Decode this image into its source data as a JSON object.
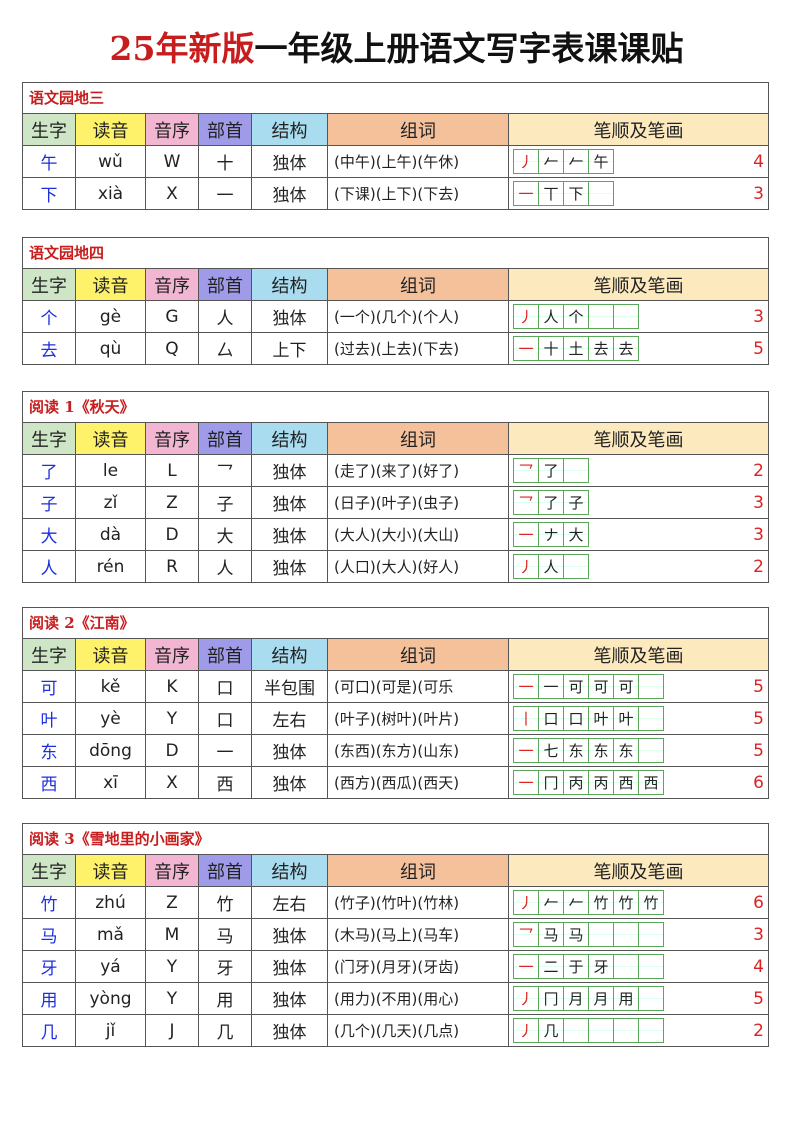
{
  "title": {
    "highlight": "25年新版",
    "rest": "一年级上册语文写字表课课贴"
  },
  "headers": [
    "生字",
    "读音",
    "音序",
    "部首",
    "结构",
    "组词",
    "笔顺及笔画"
  ],
  "sections": [
    {
      "title": "语文园地三",
      "boxes": 4,
      "rows": [
        {
          "char": "午",
          "pinyin": "wǔ",
          "initial": "W",
          "radical": "十",
          "structure": "独体",
          "words": "(中午)(上午)(午休)",
          "steps": [
            "丿",
            "𠂉",
            "𠂉",
            "午"
          ],
          "count": "4"
        },
        {
          "char": "下",
          "pinyin": "xià",
          "initial": "X",
          "radical": "一",
          "structure": "独体",
          "words": "(下课)(上下)(下去)",
          "steps": [
            "一",
            "丅",
            "下"
          ],
          "count": "3"
        }
      ]
    },
    {
      "title": "语文园地四",
      "boxes": 5,
      "rows": [
        {
          "char": "个",
          "pinyin": "gè",
          "initial": "G",
          "radical": "人",
          "structure": "独体",
          "words": "(一个)(几个)(个人)",
          "steps": [
            "丿",
            "人",
            "个"
          ],
          "count": "3"
        },
        {
          "char": "去",
          "pinyin": "qù",
          "initial": "Q",
          "radical": "厶",
          "structure": "上下",
          "words": "(过去)(上去)(下去)",
          "steps": [
            "一",
            "十",
            "土",
            "去",
            "去"
          ],
          "count": "5"
        }
      ]
    },
    {
      "title": "阅读 1《秋天》",
      "boxes": 3,
      "rows": [
        {
          "char": "了",
          "pinyin": "le",
          "initial": "L",
          "radical": "乛",
          "structure": "独体",
          "words": "(走了)(来了)(好了)",
          "steps": [
            "乛",
            "了"
          ],
          "count": "2"
        },
        {
          "char": "子",
          "pinyin": "zǐ",
          "initial": "Z",
          "radical": "子",
          "structure": "独体",
          "words": "(日子)(叶子)(虫子)",
          "steps": [
            "乛",
            "了",
            "子"
          ],
          "count": "3"
        },
        {
          "char": "大",
          "pinyin": "dà",
          "initial": "D",
          "radical": "大",
          "structure": "独体",
          "words": "(大人)(大小)(大山)",
          "steps": [
            "一",
            "ナ",
            "大"
          ],
          "count": "3"
        },
        {
          "char": "人",
          "pinyin": "rén",
          "initial": "R",
          "radical": "人",
          "structure": "独体",
          "words": "(人口)(大人)(好人)",
          "steps": [
            "丿",
            "人"
          ],
          "count": "2"
        }
      ]
    },
    {
      "title": "阅读 2《江南》",
      "boxes": 6,
      "rows": [
        {
          "char": "可",
          "pinyin": "kě",
          "initial": "K",
          "radical": "口",
          "structure": "半包围",
          "words": "(可口)(可是)(可乐",
          "steps": [
            "一",
            "一",
            "可",
            "可",
            "可"
          ],
          "count": "5"
        },
        {
          "char": "叶",
          "pinyin": "yè",
          "initial": "Y",
          "radical": "口",
          "structure": "左右",
          "words": "(叶子)(树叶)(叶片)",
          "steps": [
            "丨",
            "口",
            "口",
            "叶",
            "叶"
          ],
          "count": "5"
        },
        {
          "char": "东",
          "pinyin": "dōng",
          "initial": "D",
          "radical": "一",
          "structure": "独体",
          "words": "(东西)(东方)(山东)",
          "steps": [
            "一",
            "七",
            "东",
            "东",
            "东"
          ],
          "count": "5"
        },
        {
          "char": "西",
          "pinyin": "xī",
          "initial": "X",
          "radical": "西",
          "structure": "独体",
          "words": "(西方)(西瓜)(西天)",
          "steps": [
            "一",
            "冂",
            "丙",
            "丙",
            "西",
            "西"
          ],
          "count": "6"
        }
      ]
    },
    {
      "title": "阅读 3《雪地里的小画家》",
      "boxes": 6,
      "rows": [
        {
          "char": "竹",
          "pinyin": "zhú",
          "initial": "Z",
          "radical": "竹",
          "structure": "左右",
          "words": "(竹子)(竹叶)(竹林)",
          "steps": [
            "丿",
            "𠂉",
            "𠂉",
            "竹",
            "竹",
            "竹"
          ],
          "count": "6"
        },
        {
          "char": "马",
          "pinyin": "mǎ",
          "initial": "M",
          "radical": "马",
          "structure": "独体",
          "words": "(木马)(马上)(马车)",
          "steps": [
            "乛",
            "马",
            "马"
          ],
          "count": "3"
        },
        {
          "char": "牙",
          "pinyin": "yá",
          "initial": "Y",
          "radical": "牙",
          "structure": "独体",
          "words": "(门牙)(月牙)(牙齿)",
          "steps": [
            "一",
            "二",
            "于",
            "牙"
          ],
          "count": "4"
        },
        {
          "char": "用",
          "pinyin": "yòng",
          "initial": "Y",
          "radical": "用",
          "structure": "独体",
          "words": "(用力)(不用)(用心)",
          "steps": [
            "丿",
            "冂",
            "月",
            "月",
            "用"
          ],
          "count": "5"
        },
        {
          "char": "几",
          "pinyin": "jǐ",
          "initial": "J",
          "radical": "几",
          "structure": "独体",
          "words": "(几个)(几天)(几点)",
          "steps": [
            "丿",
            "几"
          ],
          "count": "2"
        }
      ]
    }
  ]
}
